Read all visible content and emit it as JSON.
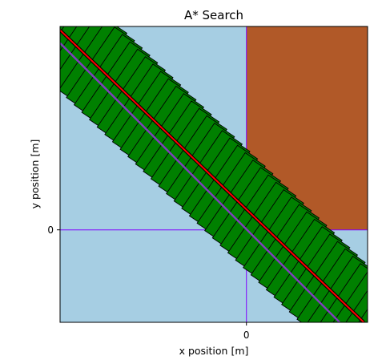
{
  "chart_data": {
    "type": "area",
    "title": "A* Search",
    "xlabel": "x position [m]",
    "ylabel": "y position [m]",
    "xlim": [
      -10,
      6.5
    ],
    "ylim": [
      -5,
      11
    ],
    "x_ticks": [
      {
        "value": 0,
        "label": "0"
      }
    ],
    "y_ticks": [
      {
        "value": 0,
        "label": "0"
      }
    ],
    "grid": false,
    "legend": "none",
    "regions": [
      {
        "kind": "water",
        "color": "#a6cee3",
        "x": [
          -10,
          6.5
        ],
        "y": [
          -5,
          11
        ]
      },
      {
        "kind": "obstacle",
        "color": "#b15928",
        "x": [
          0,
          6.5
        ],
        "y": [
          0,
          11
        ]
      }
    ],
    "axis_lines": {
      "x": 0,
      "y": 0,
      "color": "#8000ff"
    },
    "footprints": {
      "color": "#008000",
      "edge_color": "#000000",
      "count": 44,
      "half_width": 2.3,
      "step": 0.65,
      "angle": 10
    },
    "series": [
      {
        "color": "#ff0000",
        "x": [
          -10,
          6.3
        ],
        "y": [
          10.8,
          -5
        ]
      },
      {
        "color": "#7f3fbf",
        "x": [
          -10,
          5.0
        ],
        "y": [
          10.1,
          -5
        ]
      }
    ]
  }
}
